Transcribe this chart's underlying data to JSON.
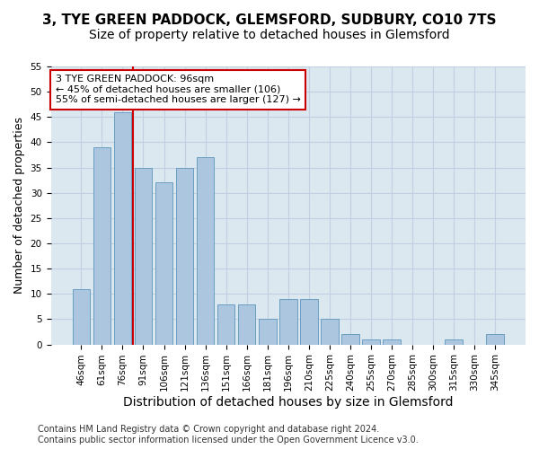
{
  "title": "3, TYE GREEN PADDOCK, GLEMSFORD, SUDBURY, CO10 7TS",
  "subtitle": "Size of property relative to detached houses in Glemsford",
  "xlabel": "Distribution of detached houses by size in Glemsford",
  "ylabel": "Number of detached properties",
  "bar_values": [
    11,
    39,
    46,
    35,
    32,
    35,
    37,
    8,
    8,
    5,
    9,
    9,
    5,
    2,
    1,
    1,
    0,
    0,
    1,
    0,
    2
  ],
  "bar_labels": [
    "46sqm",
    "61sqm",
    "76sqm",
    "91sqm",
    "106sqm",
    "121sqm",
    "136sqm",
    "151sqm",
    "166sqm",
    "181sqm",
    "196sqm",
    "210sqm",
    "225sqm",
    "240sqm",
    "255sqm",
    "270sqm",
    "285sqm",
    "300sqm",
    "315sqm",
    "330sqm",
    "345sqm"
  ],
  "bar_color": "#adc6e0",
  "bar_edge_color": "#6a9ec0",
  "vline_x": 2.5,
  "vline_color": "#cc0000",
  "annotation_text": "3 TYE GREEN PADDOCK: 96sqm\n← 45% of detached houses are smaller (106)\n55% of semi-detached houses are larger (127) →",
  "annotation_box_color": "white",
  "annotation_border_color": "#cc0000",
  "ylim": [
    0,
    55
  ],
  "yticks": [
    0,
    5,
    10,
    15,
    20,
    25,
    30,
    35,
    40,
    45,
    50,
    55
  ],
  "grid_color": "#c0d0e0",
  "bg_color": "#dce8f0",
  "footer": "Contains HM Land Registry data © Crown copyright and database right 2024.\nContains public sector information licensed under the Open Government Licence v3.0.",
  "title_fontsize": 11,
  "subtitle_fontsize": 10,
  "xlabel_fontsize": 10,
  "ylabel_fontsize": 9,
  "tick_fontsize": 7.5,
  "footer_fontsize": 7,
  "annot_fontsize": 8
}
